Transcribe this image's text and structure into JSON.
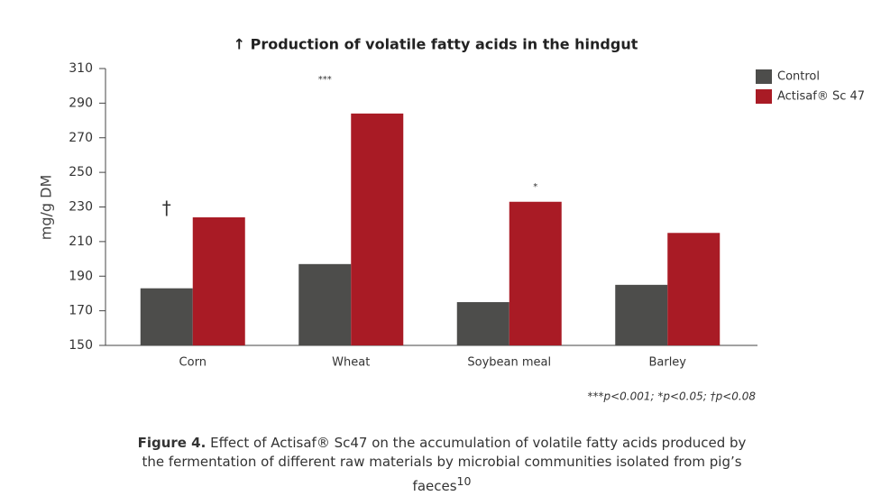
{
  "chart_data": {
    "type": "bar",
    "title": "↑ Production of volatile fatty acids in the hindgut",
    "y_label": "mg/g DM",
    "categories": [
      "Corn",
      "Wheat",
      "Soybean meal",
      "Barley"
    ],
    "series": [
      {
        "name": "Control",
        "color": "#4d4d4b",
        "values": [
          183,
          197,
          175,
          185
        ]
      },
      {
        "name": "Actisaf® Sc 47",
        "color": "#a91b25",
        "values": [
          224,
          284,
          233,
          215
        ]
      }
    ],
    "significance": [
      "†",
      "***",
      "*",
      null
    ],
    "footnote": "***p<0.001; *p<0.05; †p<0.08",
    "ylim": [
      150,
      310
    ],
    "yticks": [
      150,
      170,
      190,
      210,
      230,
      250,
      270,
      290,
      310
    ],
    "legend": "top-right"
  },
  "figure_caption": {
    "label": "Figure 4.",
    "text": "Effect of Actisaf® Sc47 on the accumulation of volatile fatty acids produced by the fermentation of different raw materials by microbial communities isolated from pig’s faeces",
    "ref": "10"
  }
}
